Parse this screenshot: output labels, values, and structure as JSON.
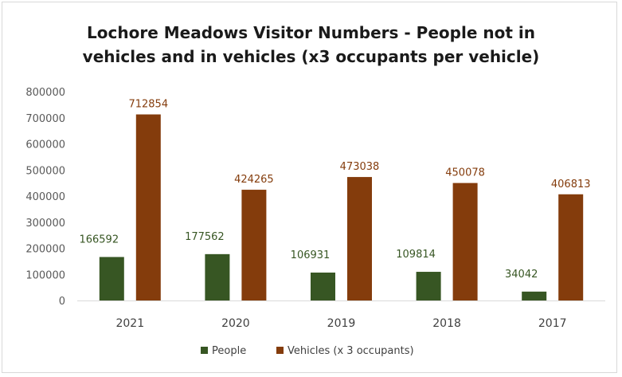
{
  "chart_data": {
    "type": "bar",
    "title_lines": [
      "Lochore Meadows Visitor Numbers - People not in",
      "vehicles and in vehicles (x3 occupants per vehicle)"
    ],
    "categories": [
      "2021",
      "2020",
      "2019",
      "2018",
      "2017"
    ],
    "series": [
      {
        "name": "People",
        "color": "#375623",
        "values": [
          166592,
          177562,
          106931,
          109814,
          34042
        ]
      },
      {
        "name": "Vehicles (x 3 occupants)",
        "color": "#843c0c",
        "values": [
          712854,
          424265,
          473038,
          450078,
          406813
        ]
      }
    ],
    "ylim": [
      0,
      800000
    ],
    "y_ticks": [
      "0",
      "100000",
      "200000",
      "300000",
      "400000",
      "500000",
      "600000",
      "700000",
      "800000"
    ],
    "grid": false,
    "legend_position": "bottom",
    "data_labels": true
  }
}
